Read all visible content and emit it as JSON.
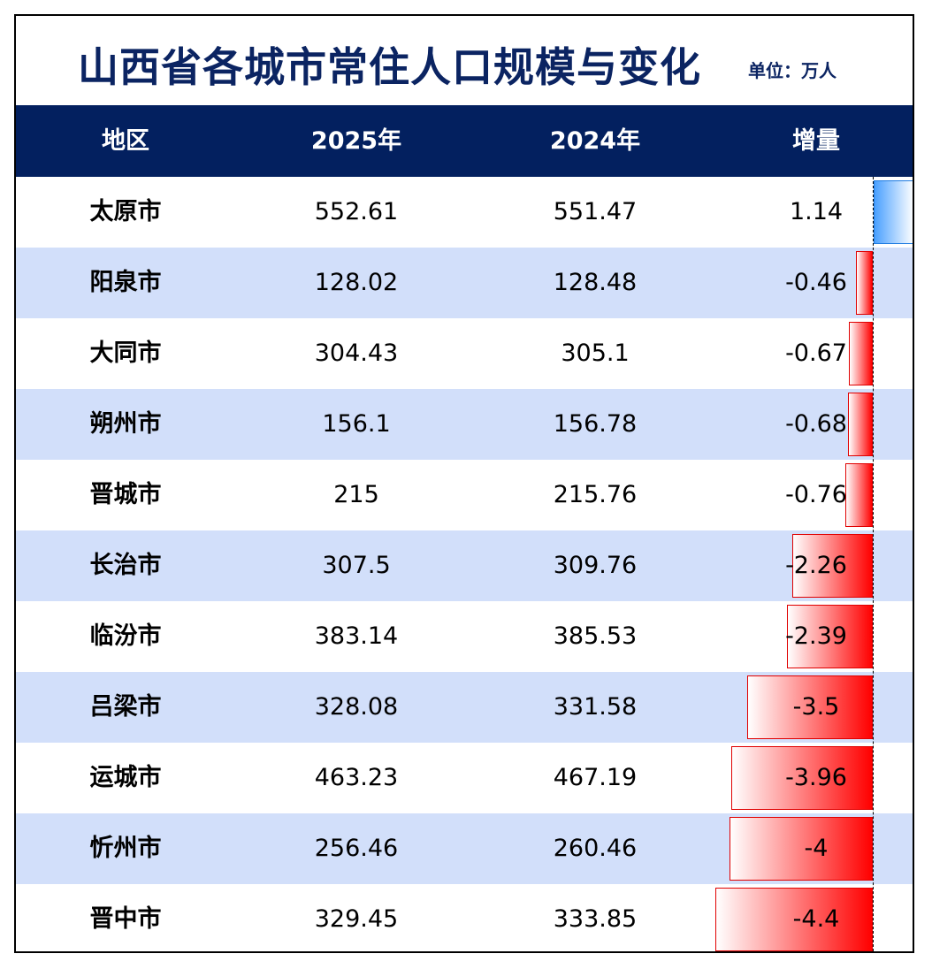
{
  "title": "山西省各城市常住人口规模与变化",
  "unit": "单位：万人",
  "colors": {
    "header_bg": "#03205f",
    "title": "#0b2462",
    "row_alt": "#d2dffa",
    "negative_bar": "#ff0000",
    "positive_bar": "#4aa0ff"
  },
  "chart_data": {
    "type": "table",
    "columns": [
      "地区",
      "2025年",
      "2024年",
      "增量"
    ],
    "rows": [
      {
        "region": "太原市",
        "y2025": "552.61",
        "y2024": "551.47",
        "change": "1.14",
        "change_value": 1.14
      },
      {
        "region": "阳泉市",
        "y2025": "128.02",
        "y2024": "128.48",
        "change": "-0.46",
        "change_value": -0.46
      },
      {
        "region": "大同市",
        "y2025": "304.43",
        "y2024": "305.1",
        "change": "-0.67",
        "change_value": -0.67
      },
      {
        "region": "朔州市",
        "y2025": "156.1",
        "y2024": "156.78",
        "change": "-0.68",
        "change_value": -0.68
      },
      {
        "region": "晋城市",
        "y2025": "215",
        "y2024": "215.76",
        "change": "-0.76",
        "change_value": -0.76
      },
      {
        "region": "长治市",
        "y2025": "307.5",
        "y2024": "309.76",
        "change": "-2.26",
        "change_value": -2.26
      },
      {
        "region": "临汾市",
        "y2025": "383.14",
        "y2024": "385.53",
        "change": "-2.39",
        "change_value": -2.39
      },
      {
        "region": "吕梁市",
        "y2025": "328.08",
        "y2024": "331.58",
        "change": "-3.5",
        "change_value": -3.5
      },
      {
        "region": "运城市",
        "y2025": "463.23",
        "y2024": "467.19",
        "change": "-3.96",
        "change_value": -3.96
      },
      {
        "region": "忻州市",
        "y2025": "256.46",
        "y2024": "260.46",
        "change": "-4",
        "change_value": -4
      },
      {
        "region": "晋中市",
        "y2025": "329.45",
        "y2024": "333.85",
        "change": "-4.4",
        "change_value": -4.4
      }
    ]
  }
}
